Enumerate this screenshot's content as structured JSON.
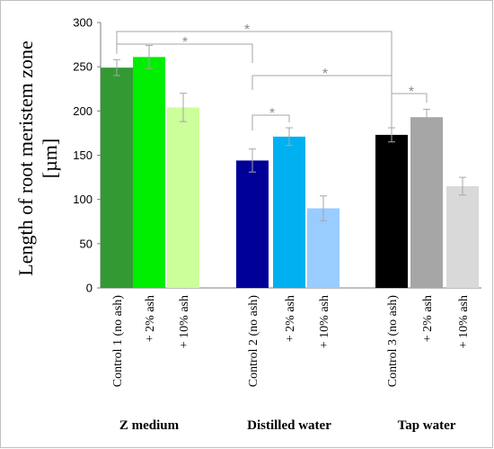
{
  "chart_data": {
    "type": "bar",
    "ylabel": "Length of root meristem zone [µm]",
    "ylabel_lines": [
      "Length of root meristem zone",
      "[µm]"
    ],
    "ylim": [
      0,
      300
    ],
    "yticks": [
      "0",
      "50",
      "100",
      "150",
      "200",
      "250",
      "300"
    ],
    "grid": false,
    "groups": [
      {
        "label": "Z medium",
        "bars": [
          {
            "category": "Control 1 (no ash)",
            "value": 249,
            "error": 9,
            "color": "#339933"
          },
          {
            "category": "+ 2% ash",
            "value": 261,
            "error": 13,
            "color": "#00ee00"
          },
          {
            "category": "+ 10% ash",
            "value": 204,
            "error": 16,
            "color": "#ccff99"
          }
        ]
      },
      {
        "label": "Distilled water",
        "bars": [
          {
            "category": "Control 2 (no ash)",
            "value": 144,
            "error": 13,
            "color": "#000099"
          },
          {
            "category": "+ 2% ash",
            "value": 171,
            "error": 10,
            "color": "#00b0f0"
          },
          {
            "category": "+ 10% ash",
            "value": 90,
            "error": 14,
            "color": "#99ccff"
          }
        ]
      },
      {
        "label": "Tap water",
        "bars": [
          {
            "category": "Control 3 (no ash)",
            "value": 173,
            "error": 8,
            "color": "#000000"
          },
          {
            "category": "+ 2% ash",
            "value": 193,
            "error": 9,
            "color": "#a6a6a6"
          },
          {
            "category": "+ 10% ash",
            "value": 115,
            "error": 10,
            "color": "#d9d9d9"
          }
        ]
      }
    ],
    "significance": [
      {
        "label": "*",
        "from": "Control 1 (no ash)",
        "to": "Control 2 (no ash)"
      },
      {
        "label": "*",
        "from": "Control 1 (no ash)",
        "to": "Control 3 (no ash)"
      },
      {
        "label": "*",
        "from": "Control 2 (no ash)",
        "to": "Control 3 (no ash)"
      },
      {
        "label": "*",
        "from": "Control 2 (no ash)",
        "to": "Distilled water + 2% ash"
      },
      {
        "label": "*",
        "from": "Control 3 (no ash)",
        "to": "Tap water + 2% ash"
      }
    ]
  }
}
